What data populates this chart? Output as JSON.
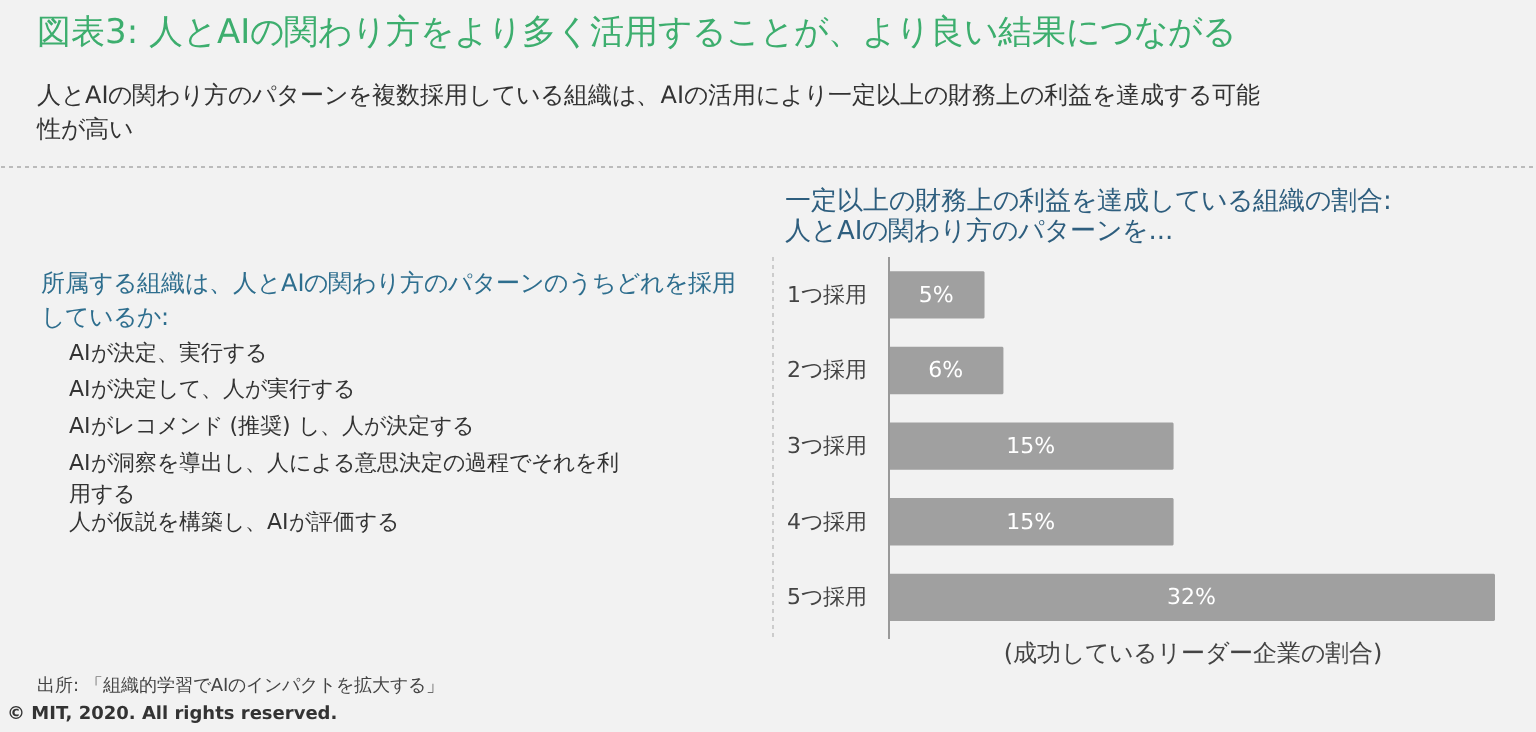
{
  "chart_data": [
    {
      "type": "other",
      "title": "図表3:  人とAIの関わり方をより多く活用することが、より良い結果につながる",
      "subtitle": "人とAIの関わり方のパターンを複数採用している組織は、AIの活用により一定以上の財務上の利益を達成する可能性が高い",
      "annotations": [
        "所属する組織は、人とAIの関わり方のパターンのうちどれを採用しているか:",
        "AIが決定、実行する",
        "AIが決定して、人が実行する",
        "AIがレコメンド (推奨) し、人が決定する",
        "AIが洞察を導出し、人による意思決定の過程でそれを利用する",
        "人が仮説を構築し、AIが評価する",
        "出所: 「組織的学習でAIのインパクトを拡大する」",
        "© MIT, 2020. All rights reserved."
      ]
    },
    {
      "type": "bar",
      "orientation": "horizontal",
      "title": "一定以上の財務上の利益を達成している組織の割合:\n人とAIの関わり方のパターンを...",
      "xlabel": "(成功しているリーダー企業の割合)",
      "categories": [
        "1つ採用",
        "2つ採用",
        "3つ採用",
        "4つ採用",
        "5つ採用"
      ],
      "values": [
        5,
        6,
        15,
        15,
        32
      ],
      "color": "#a0a0a0",
      "value_labels": [
        "5%",
        "6%",
        "15%",
        "15%",
        "32%"
      ],
      "grid": false
    }
  ]
}
